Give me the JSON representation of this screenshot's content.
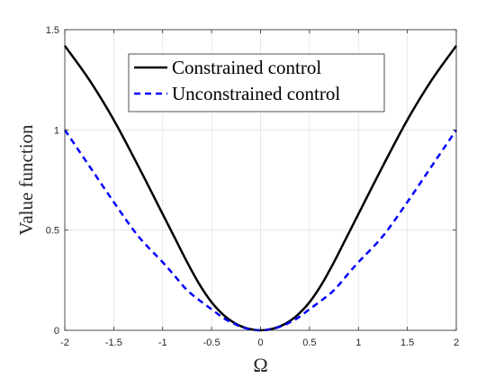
{
  "chart_data": {
    "type": "line",
    "title": "",
    "xlabel": "Ω",
    "ylabel": "Value function",
    "xlim": [
      -2,
      2
    ],
    "ylim": [
      0,
      1.5
    ],
    "xticks": [
      -2,
      -1.5,
      -1,
      -0.5,
      0,
      0.5,
      1,
      1.5,
      2
    ],
    "yticks": [
      0,
      0.5,
      1,
      1.5
    ],
    "xtick_labels": [
      "-2",
      "-1.5",
      "-1",
      "-0.5",
      "0",
      "0.5",
      "1",
      "1.5",
      "2"
    ],
    "ytick_labels": [
      "0",
      "0.5",
      "1",
      "1.5"
    ],
    "grid": true,
    "legend_position": "top-center",
    "series": [
      {
        "name": "Constrained control",
        "color": "#000000",
        "style": "solid",
        "x": [
          -2,
          -1.75,
          -1.5,
          -1.25,
          -1,
          -0.875,
          -0.75,
          -0.625,
          -0.5,
          -0.375,
          -0.25,
          -0.125,
          0,
          0.125,
          0.25,
          0.375,
          0.5,
          0.625,
          0.75,
          0.875,
          1,
          1.25,
          1.5,
          1.75,
          2
        ],
        "y": [
          1.42,
          1.25,
          1.05,
          0.82,
          0.58,
          0.46,
          0.34,
          0.23,
          0.14,
          0.075,
          0.032,
          0.008,
          0,
          0.008,
          0.032,
          0.075,
          0.14,
          0.23,
          0.34,
          0.46,
          0.58,
          0.82,
          1.05,
          1.25,
          1.42
        ]
      },
      {
        "name": "Unconstrained control",
        "color": "#0000ff",
        "style": "dashed",
        "x": [
          -2,
          -1.75,
          -1.5,
          -1.25,
          -1,
          -0.875,
          -0.75,
          -0.625,
          -0.5,
          -0.375,
          -0.25,
          -0.125,
          0,
          0.125,
          0.25,
          0.375,
          0.5,
          0.625,
          0.75,
          0.875,
          1,
          1.25,
          1.5,
          1.75,
          2
        ],
        "y": [
          1.0,
          0.82,
          0.64,
          0.47,
          0.34,
          0.27,
          0.2,
          0.15,
          0.105,
          0.06,
          0.028,
          0.007,
          0,
          0.007,
          0.028,
          0.06,
          0.105,
          0.15,
          0.2,
          0.27,
          0.34,
          0.47,
          0.64,
          0.82,
          1.0
        ]
      }
    ]
  }
}
